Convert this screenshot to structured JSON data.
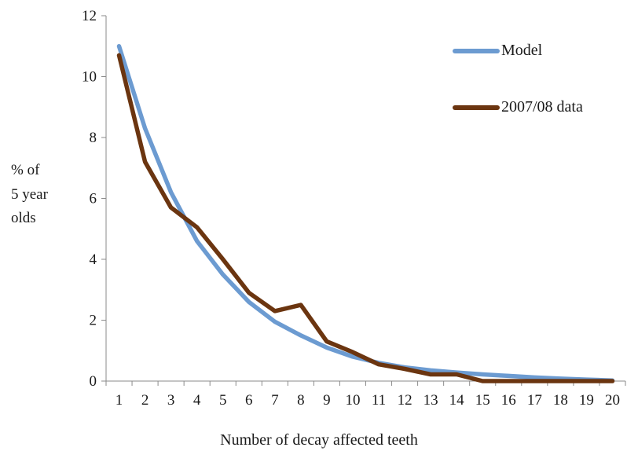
{
  "chart_data": {
    "type": "line",
    "title": "",
    "xlabel": "Number  of decay affected teeth",
    "ylabel_lines": [
      "% of",
      "5 year",
      "olds"
    ],
    "categories": [
      "1",
      "2",
      "3",
      "4",
      "5",
      "6",
      "7",
      "8",
      "9",
      "10",
      "11",
      "12",
      "13",
      "14",
      "15",
      "16",
      "17",
      "18",
      "19",
      "20"
    ],
    "ylim": [
      0,
      12
    ],
    "yticks": [
      0,
      2,
      4,
      6,
      8,
      10,
      12
    ],
    "grid": false,
    "legend_position": "top-right",
    "series": [
      {
        "name": "Model",
        "color": "#6c9bd1",
        "values": [
          11.0,
          8.3,
          6.2,
          4.6,
          3.5,
          2.6,
          1.95,
          1.5,
          1.1,
          0.8,
          0.6,
          0.45,
          0.35,
          0.28,
          0.22,
          0.17,
          0.12,
          0.08,
          0.05,
          0.02
        ]
      },
      {
        "name": "2007/08 data",
        "color": "#6b3510",
        "values": [
          10.7,
          7.2,
          5.7,
          5.05,
          4.0,
          2.9,
          2.3,
          2.5,
          1.3,
          0.95,
          0.55,
          0.4,
          0.22,
          0.22,
          0.0,
          0.0,
          0.0,
          0.0,
          0.0,
          0.0
        ]
      }
    ]
  }
}
